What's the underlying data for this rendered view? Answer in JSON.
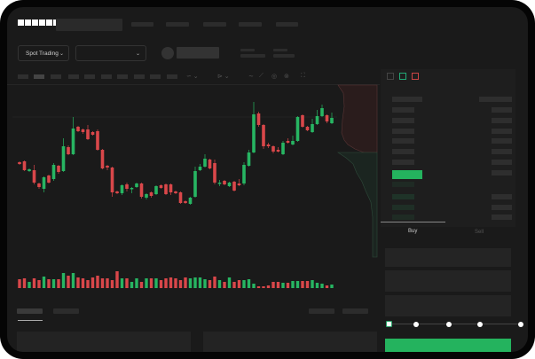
{
  "header": {
    "logo": "OKX",
    "nav_count": 5
  },
  "market_select": {
    "label": "Spot Trading"
  },
  "trade": {
    "buy_label": "Buy",
    "sell_label": "Sell",
    "slider_steps": [
      "0%",
      "25%",
      "50%",
      "75%",
      "100%"
    ],
    "slider_value": 0
  },
  "colors": {
    "up": "#27b562",
    "down": "#d9474a",
    "accent": "#24b35e"
  },
  "chart_data": {
    "type": "candlestick",
    "ohlc": [
      [
        117,
        118,
        114,
        115
      ],
      [
        118,
        119,
        107,
        108
      ],
      [
        107,
        110,
        106,
        109
      ],
      [
        108,
        114,
        92,
        94
      ],
      [
        93,
        94,
        87,
        89
      ],
      [
        87,
        101,
        83,
        100
      ],
      [
        102,
        103,
        93,
        94
      ],
      [
        98,
        116,
        96,
        114
      ],
      [
        113,
        114,
        104,
        106
      ],
      [
        107,
        144,
        106,
        135
      ],
      [
        134,
        136,
        125,
        126
      ],
      [
        126,
        168,
        125,
        155
      ],
      [
        157,
        158,
        151,
        152
      ],
      [
        154,
        155,
        149,
        151
      ],
      [
        154,
        159,
        142,
        143
      ],
      [
        151,
        152,
        147,
        148
      ],
      [
        152,
        154,
        130,
        131
      ],
      [
        131,
        132,
        109,
        110
      ],
      [
        113,
        114,
        108,
        111
      ],
      [
        111,
        112,
        78,
        83
      ],
      [
        84,
        85,
        81,
        82
      ],
      [
        82,
        92,
        80,
        91
      ],
      [
        92,
        94,
        84,
        87
      ],
      [
        87,
        89,
        82,
        88
      ],
      [
        89,
        94,
        88,
        93
      ],
      [
        93,
        94,
        76,
        78
      ],
      [
        77,
        82,
        75,
        81
      ],
      [
        83,
        84,
        77,
        79
      ],
      [
        81,
        91,
        80,
        90
      ],
      [
        91,
        92,
        87,
        88
      ],
      [
        92,
        93,
        80,
        81
      ],
      [
        92,
        93,
        80,
        83
      ],
      [
        84,
        85,
        81,
        82
      ],
      [
        83,
        84,
        70,
        71
      ],
      [
        73,
        74,
        70,
        71
      ],
      [
        70,
        78,
        69,
        77
      ],
      [
        78,
        112,
        77,
        107
      ],
      [
        108,
        115,
        107,
        112
      ],
      [
        112,
        126,
        111,
        121
      ],
      [
        120,
        121,
        109,
        110
      ],
      [
        116,
        120,
        92,
        94
      ],
      [
        93,
        97,
        90,
        94
      ],
      [
        96,
        97,
        91,
        92
      ],
      [
        90,
        95,
        89,
        94
      ],
      [
        95,
        96,
        84,
        85
      ],
      [
        93,
        98,
        90,
        91
      ],
      [
        93,
        117,
        91,
        114
      ],
      [
        113,
        131,
        112,
        128
      ],
      [
        128,
        185,
        127,
        171
      ],
      [
        172,
        174,
        157,
        159
      ],
      [
        159,
        160,
        132,
        135
      ],
      [
        137,
        139,
        133,
        135
      ],
      [
        135,
        136,
        127,
        129
      ],
      [
        131,
        134,
        128,
        129
      ],
      [
        126,
        141,
        125,
        139
      ],
      [
        141,
        144,
        138,
        139
      ],
      [
        137,
        147,
        136,
        141
      ],
      [
        141,
        169,
        140,
        168
      ],
      [
        170,
        171,
        156,
        157
      ],
      [
        157,
        158,
        152,
        153
      ],
      [
        151,
        166,
        150,
        160
      ],
      [
        160,
        176,
        159,
        169
      ],
      [
        169,
        182,
        168,
        178
      ],
      [
        170,
        171,
        161,
        163
      ],
      [
        161,
        173,
        160,
        167
      ]
    ],
    "volume": [
      10,
      11,
      7,
      11,
      9,
      13,
      10,
      10,
      10,
      17,
      14,
      17,
      12,
      11,
      9,
      12,
      14,
      11,
      11,
      9,
      19,
      11,
      11,
      7,
      11,
      7,
      11,
      11,
      11,
      9,
      11,
      12,
      11,
      9,
      12,
      11,
      12,
      12,
      10,
      9,
      13,
      9,
      7,
      12,
      7,
      9,
      9,
      10,
      5,
      2,
      2,
      3,
      7,
      7,
      6,
      6,
      8,
      8,
      8,
      8,
      9,
      6,
      5,
      3,
      4
    ]
  }
}
